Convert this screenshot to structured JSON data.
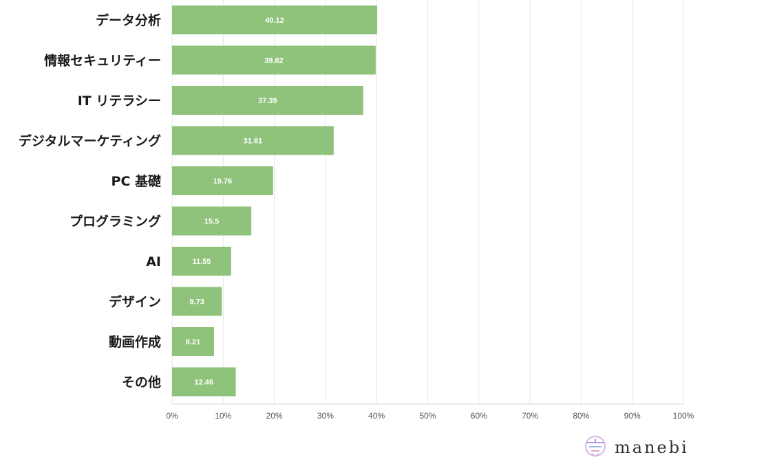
{
  "chart_data": {
    "type": "bar",
    "orientation": "horizontal",
    "categories": [
      "データ分析",
      "情報セキュリティー",
      "IT リテラシー",
      "デジタルマーケティング",
      "PC 基礎",
      "プログラミング",
      "AI",
      "デザイン",
      "動画作成",
      "その他"
    ],
    "values": [
      40.12,
      39.82,
      37.39,
      31.61,
      19.76,
      15.5,
      11.55,
      9.73,
      8.21,
      12.46
    ],
    "value_labels": [
      "40.12",
      "39.82",
      "37.39",
      "31.61",
      "19.76",
      "15.5",
      "11.55",
      "9.73",
      "8.21",
      "12.46"
    ],
    "xlim": [
      0,
      100
    ],
    "x_ticks": [
      "0%",
      "10%",
      "20%",
      "30%",
      "40%",
      "50%",
      "60%",
      "70%",
      "80%",
      "90%",
      "100%"
    ],
    "title": "",
    "xlabel": "",
    "ylabel": "",
    "grid": true,
    "bar_color": "#8fc37c"
  },
  "brand": {
    "name": "manebi",
    "logo_icon": "manebi-logo-icon",
    "logo_colors": [
      "#c9a3d9",
      "#9fb8e6",
      "#e3a6c8"
    ]
  }
}
